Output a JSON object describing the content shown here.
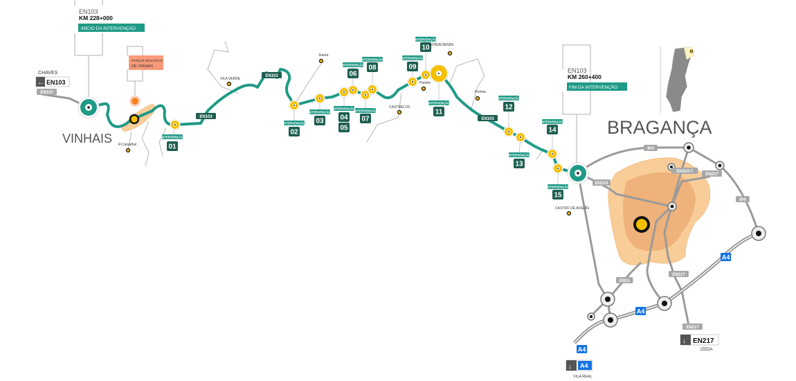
{
  "colors": {
    "route": "#1f9a86",
    "badge_dark": "#1e5e50",
    "accent_yellow": "#f5bf00",
    "park": "#f79a7a",
    "city_area": "#f7c48f",
    "road_grey": "#a8a8a8",
    "motorway_blue": "#1473e6"
  },
  "start": {
    "road": "EN103",
    "km": "KM 228+000",
    "label": "INÍCIO DA INTERVENÇÃO"
  },
  "end": {
    "road": "EN103",
    "km": "KM 260+400",
    "label": "FIM DA INTERVENÇÃO"
  },
  "park": {
    "line1": "PARQUE BIOLÓGICO",
    "line2": "DE VINHAIS"
  },
  "towns": {
    "vinhais": "VINHAIS",
    "braganca": "BRAGANÇA"
  },
  "chaves_sign": {
    "place": "CHAVES",
    "road": "EN103",
    "icon": "arrow-left-icon"
  },
  "places": [
    "Soeira",
    "VILA VERDE",
    "GONDESENDE",
    "Portela",
    "CASTRELOS",
    "Portela",
    "CASTRO DE AVELÃS",
    "R.Carvalhal"
  ],
  "intervention_label": "INTERVENÇÃO",
  "interventions": [
    "01",
    "02",
    "03",
    "04",
    "05",
    "06",
    "07",
    "08",
    "09",
    "10",
    "11",
    "12",
    "13",
    "14",
    "15"
  ],
  "road_labels": {
    "en103_a": "EN103",
    "en103_b": "EN103",
    "en103_c": "EN103",
    "en103_d": "EN103",
    "ip4_a": "IP4",
    "ip4_b": "IP4",
    "en103_7": "EN103-7",
    "en217_a": "EN217",
    "en217_b": "EN217",
    "en217_c": "EN217",
    "en15": "EN15",
    "a4_a": "A4",
    "a4_b": "A4",
    "a4_c": "A4"
  },
  "exits": {
    "vila_real": {
      "road": "A4",
      "place": "VILA REAL",
      "icon": "arrow-down-icon"
    },
    "izeda": {
      "road": "EN217",
      "place": "IZEDA",
      "icon": "arrow-down-icon"
    }
  }
}
